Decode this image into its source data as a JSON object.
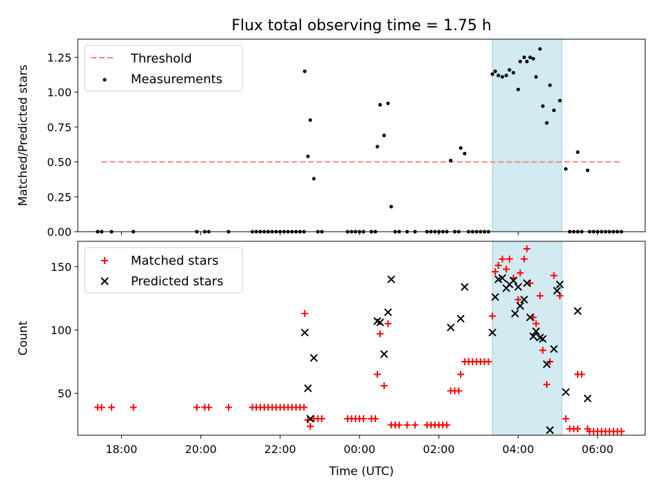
{
  "title": "Flux total observing time = 1.75 h",
  "chart_data": [
    {
      "type": "scatter",
      "panel": "top",
      "xlabel": "",
      "ylabel": "Matched/Predicted stars",
      "xlim": [
        16.9,
        31.2
      ],
      "ylim": [
        0,
        1.38
      ],
      "yticks": [
        0.0,
        0.25,
        0.5,
        0.75,
        1.0,
        1.25
      ],
      "ytick_labels": [
        "0.00",
        "0.25",
        "0.50",
        "0.75",
        "1.00",
        "1.25"
      ],
      "shaded_interval": [
        27.35,
        29.1
      ],
      "threshold": {
        "name": "Threshold",
        "y": 0.5,
        "x_range": [
          17.5,
          30.55
        ],
        "color": "#ff7f7f"
      },
      "legend": {
        "position": "top-left",
        "entries": [
          "Threshold",
          "Measurements"
        ]
      },
      "series": [
        {
          "name": "Measurements",
          "color": "#000000",
          "marker": "dot",
          "points": [
            [
              17.4,
              0
            ],
            [
              17.5,
              0
            ],
            [
              17.75,
              0
            ],
            [
              18.3,
              0
            ],
            [
              19.9,
              0
            ],
            [
              20.1,
              0
            ],
            [
              20.2,
              0
            ],
            [
              20.7,
              0
            ],
            [
              21.3,
              0
            ],
            [
              21.4,
              0
            ],
            [
              21.5,
              0
            ],
            [
              21.6,
              0
            ],
            [
              21.7,
              0
            ],
            [
              21.8,
              0
            ],
            [
              21.9,
              0
            ],
            [
              22.0,
              0
            ],
            [
              22.1,
              0
            ],
            [
              22.2,
              0
            ],
            [
              22.3,
              0
            ],
            [
              22.4,
              0
            ],
            [
              22.5,
              0
            ],
            [
              22.6,
              0
            ],
            [
              22.62,
              1.15
            ],
            [
              22.7,
              0.54
            ],
            [
              22.76,
              0.8
            ],
            [
              22.85,
              0.38
            ],
            [
              22.95,
              0
            ],
            [
              23.05,
              0
            ],
            [
              23.7,
              0
            ],
            [
              23.8,
              0
            ],
            [
              23.9,
              0
            ],
            [
              24.0,
              0
            ],
            [
              24.1,
              0
            ],
            [
              24.3,
              0
            ],
            [
              24.4,
              0
            ],
            [
              24.45,
              0.61
            ],
            [
              24.52,
              0.91
            ],
            [
              24.62,
              0.69
            ],
            [
              24.72,
              0.92
            ],
            [
              24.8,
              0.18
            ],
            [
              24.9,
              0
            ],
            [
              25.0,
              0
            ],
            [
              25.2,
              0
            ],
            [
              25.4,
              0
            ],
            [
              25.7,
              0
            ],
            [
              25.8,
              0
            ],
            [
              25.9,
              0
            ],
            [
              26.0,
              0
            ],
            [
              26.1,
              0
            ],
            [
              26.2,
              0
            ],
            [
              26.3,
              0.51
            ],
            [
              26.4,
              0
            ],
            [
              26.5,
              0
            ],
            [
              26.55,
              0.6
            ],
            [
              26.65,
              0.56
            ],
            [
              26.75,
              0
            ],
            [
              26.85,
              0
            ],
            [
              26.95,
              0
            ],
            [
              27.05,
              0
            ],
            [
              27.15,
              0
            ],
            [
              27.25,
              0
            ],
            [
              27.35,
              1.13
            ],
            [
              27.42,
              1.15
            ],
            [
              27.5,
              1.12
            ],
            [
              27.6,
              1.11
            ],
            [
              27.7,
              1.12
            ],
            [
              27.78,
              1.16
            ],
            [
              27.88,
              1.14
            ],
            [
              28.0,
              1.02
            ],
            [
              28.05,
              1.22
            ],
            [
              28.15,
              1.25
            ],
            [
              28.22,
              1.22
            ],
            [
              28.3,
              1.25
            ],
            [
              28.38,
              1.24
            ],
            [
              28.45,
              1.11
            ],
            [
              28.55,
              1.31
            ],
            [
              28.62,
              0.9
            ],
            [
              28.72,
              0.78
            ],
            [
              28.8,
              1.05
            ],
            [
              28.9,
              0.87
            ],
            [
              29.05,
              0.94
            ],
            [
              29.2,
              0.45
            ],
            [
              29.5,
              0.57
            ],
            [
              29.75,
              0.44
            ],
            [
              29.3,
              0
            ],
            [
              29.4,
              0
            ],
            [
              29.5,
              0
            ],
            [
              29.6,
              0
            ],
            [
              29.8,
              0
            ],
            [
              29.9,
              0
            ],
            [
              30.0,
              0
            ],
            [
              30.1,
              0
            ],
            [
              30.2,
              0
            ],
            [
              30.3,
              0
            ],
            [
              30.4,
              0
            ],
            [
              30.5,
              0
            ],
            [
              30.6,
              0
            ]
          ]
        }
      ]
    },
    {
      "type": "scatter",
      "panel": "bottom",
      "xlabel": "Time (UTC)",
      "ylabel": "Count",
      "xlim": [
        16.9,
        31.2
      ],
      "ylim": [
        17,
        170
      ],
      "xticks": [
        18,
        20,
        22,
        24,
        26,
        28,
        30
      ],
      "xtick_labels": [
        "18:00",
        "20:00",
        "22:00",
        "00:00",
        "02:00",
        "04:00",
        "06:00"
      ],
      "yticks": [
        50,
        100,
        150
      ],
      "ytick_labels": [
        "50",
        "100",
        "150"
      ],
      "shaded_interval": [
        27.35,
        29.1
      ],
      "legend": {
        "position": "top-left",
        "entries": [
          "Matched stars",
          "Predicted stars"
        ]
      },
      "series": [
        {
          "name": "Matched stars",
          "color": "#ff0000",
          "marker": "plus",
          "points": [
            [
              17.4,
              39
            ],
            [
              17.5,
              39
            ],
            [
              17.75,
              39
            ],
            [
              18.3,
              39
            ],
            [
              19.9,
              39
            ],
            [
              20.1,
              39
            ],
            [
              20.2,
              39
            ],
            [
              20.7,
              39
            ],
            [
              21.3,
              39
            ],
            [
              21.4,
              39
            ],
            [
              21.5,
              39
            ],
            [
              21.6,
              39
            ],
            [
              21.7,
              39
            ],
            [
              21.8,
              39
            ],
            [
              21.9,
              39
            ],
            [
              22.0,
              39
            ],
            [
              22.1,
              39
            ],
            [
              22.2,
              39
            ],
            [
              22.3,
              39
            ],
            [
              22.4,
              39
            ],
            [
              22.5,
              39
            ],
            [
              22.6,
              39
            ],
            [
              22.62,
              113
            ],
            [
              22.7,
              29
            ],
            [
              22.76,
              24
            ],
            [
              22.85,
              30
            ],
            [
              22.95,
              30
            ],
            [
              23.05,
              30
            ],
            [
              23.7,
              30
            ],
            [
              23.8,
              30
            ],
            [
              23.9,
              30
            ],
            [
              24.0,
              30
            ],
            [
              24.1,
              30
            ],
            [
              24.3,
              30
            ],
            [
              24.4,
              30
            ],
            [
              24.45,
              65
            ],
            [
              24.52,
              97
            ],
            [
              24.62,
              56
            ],
            [
              24.72,
              105
            ],
            [
              24.8,
              25
            ],
            [
              24.9,
              25
            ],
            [
              25.0,
              25
            ],
            [
              25.2,
              25
            ],
            [
              25.4,
              25
            ],
            [
              25.7,
              25
            ],
            [
              25.8,
              25
            ],
            [
              25.9,
              25
            ],
            [
              26.0,
              25
            ],
            [
              26.1,
              25
            ],
            [
              26.2,
              25
            ],
            [
              26.3,
              52
            ],
            [
              26.4,
              52
            ],
            [
              26.5,
              52
            ],
            [
              26.55,
              65
            ],
            [
              26.65,
              75
            ],
            [
              26.75,
              75
            ],
            [
              26.85,
              75
            ],
            [
              26.95,
              75
            ],
            [
              27.05,
              75
            ],
            [
              27.15,
              75
            ],
            [
              27.25,
              75
            ],
            [
              27.35,
              111
            ],
            [
              27.42,
              146
            ],
            [
              27.5,
              151
            ],
            [
              27.6,
              156
            ],
            [
              27.7,
              148
            ],
            [
              27.78,
              156
            ],
            [
              27.88,
              141
            ],
            [
              28.0,
              124
            ],
            [
              28.05,
              145
            ],
            [
              28.15,
              156
            ],
            [
              28.22,
              164
            ],
            [
              28.3,
              137
            ],
            [
              28.38,
              110
            ],
            [
              28.45,
              105
            ],
            [
              28.55,
              127
            ],
            [
              28.62,
              84
            ],
            [
              28.72,
              57
            ],
            [
              28.8,
              75
            ],
            [
              28.9,
              143
            ],
            [
              29.05,
              127
            ],
            [
              29.2,
              30
            ],
            [
              29.5,
              65
            ],
            [
              29.75,
              22
            ],
            [
              29.3,
              22
            ],
            [
              29.4,
              22
            ],
            [
              29.5,
              22
            ],
            [
              29.6,
              65
            ],
            [
              29.8,
              20
            ],
            [
              29.9,
              20
            ],
            [
              30.0,
              20
            ],
            [
              30.1,
              20
            ],
            [
              30.2,
              20
            ],
            [
              30.3,
              20
            ],
            [
              30.4,
              20
            ],
            [
              30.5,
              20
            ],
            [
              30.6,
              20
            ]
          ]
        },
        {
          "name": "Predicted stars",
          "color": "#000000",
          "marker": "x",
          "points": [
            [
              22.62,
              98
            ],
            [
              22.7,
              54
            ],
            [
              22.76,
              30
            ],
            [
              22.85,
              78
            ],
            [
              24.45,
              107
            ],
            [
              24.52,
              106
            ],
            [
              24.62,
              81
            ],
            [
              24.72,
              114
            ],
            [
              24.8,
              140
            ],
            [
              26.3,
              102
            ],
            [
              26.55,
              109
            ],
            [
              26.65,
              134
            ],
            [
              27.35,
              98
            ],
            [
              27.42,
              126
            ],
            [
              27.5,
              140
            ],
            [
              27.6,
              141
            ],
            [
              27.7,
              133
            ],
            [
              27.78,
              136
            ],
            [
              27.88,
              139
            ],
            [
              27.92,
              113
            ],
            [
              28.0,
              134
            ],
            [
              28.05,
              119
            ],
            [
              28.15,
              124
            ],
            [
              28.22,
              137
            ],
            [
              28.3,
              110
            ],
            [
              28.38,
              95
            ],
            [
              28.45,
              99
            ],
            [
              28.55,
              94
            ],
            [
              28.62,
              93
            ],
            [
              28.72,
              73
            ],
            [
              28.8,
              21
            ],
            [
              28.9,
              85
            ],
            [
              28.98,
              131
            ],
            [
              29.05,
              136
            ],
            [
              29.2,
              51
            ],
            [
              29.5,
              115
            ],
            [
              29.75,
              46
            ]
          ]
        }
      ]
    }
  ]
}
